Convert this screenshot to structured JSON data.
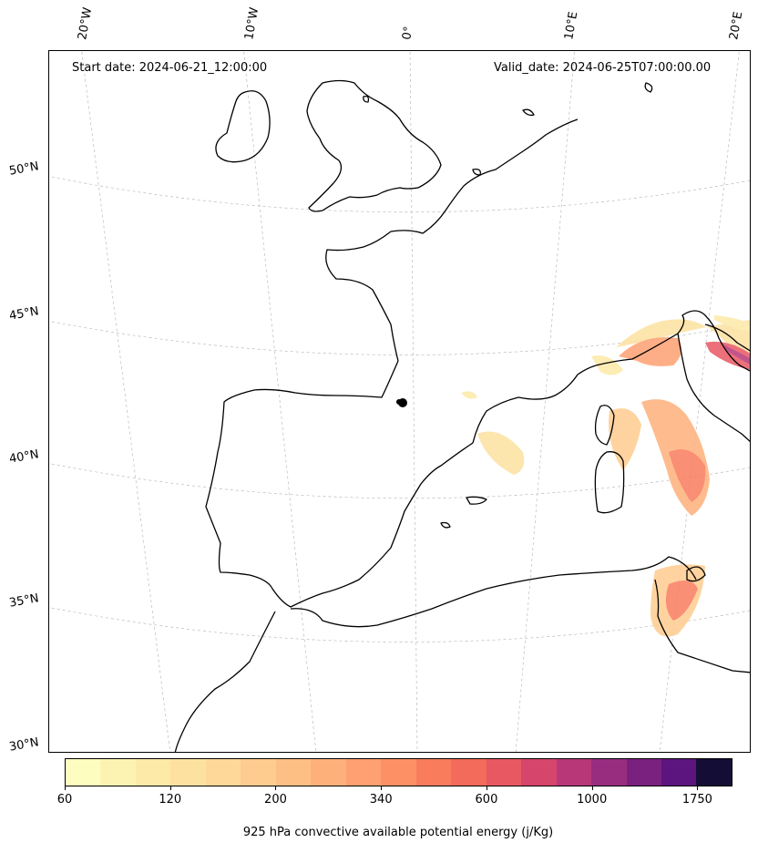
{
  "annotations": {
    "start_date": "Start date: 2024-06-21_12:00:00",
    "valid_date": "Valid_date: 2024-06-25T07:00:00.00"
  },
  "lon_labels": [
    "20°W",
    "10°W",
    "0°",
    "10°E",
    "20°E"
  ],
  "lat_labels": [
    "50°N",
    "45°N",
    "40°N",
    "35°N",
    "30°N"
  ],
  "colorbar": {
    "label": "925 hPa convective available potential energy (j/Kg)",
    "tick_labels": [
      "60",
      "120",
      "200",
      "340",
      "600",
      "1000",
      "1750"
    ],
    "colors": [
      "#fcfdbf",
      "#fcf3b3",
      "#fde9a8",
      "#fde1a0",
      "#fed898",
      "#fecc8f",
      "#febf85",
      "#feb07b",
      "#fea071",
      "#fd9065",
      "#f97c5d",
      "#f36b5a",
      "#e85862",
      "#d6456c",
      "#b73779",
      "#982d80",
      "#7a217f",
      "#5c157e",
      "#140e36"
    ]
  },
  "map": {
    "coastline_color": "#000000",
    "gridline_color": "#bbbbbb",
    "marker_label": ""
  }
}
